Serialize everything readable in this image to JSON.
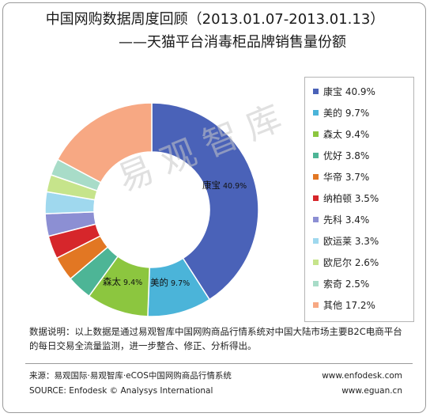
{
  "header": {
    "title": "中国网购数据周度回顾（2013.01.07-2013.01.13）",
    "subtitle": "——天猫平台消毒柜品牌销售量份额"
  },
  "watermark": "易观智库",
  "chart_data": {
    "type": "pie",
    "donut": true,
    "categories": [
      "康宝",
      "美的",
      "森太",
      "优好",
      "华帝",
      "纳柏顿",
      "先科",
      "欧运莱",
      "欧尼尔",
      "索奇",
      "其他"
    ],
    "values": [
      40.9,
      9.7,
      9.4,
      3.8,
      3.7,
      3.5,
      3.4,
      3.3,
      2.6,
      2.5,
      17.2
    ],
    "unit": "%",
    "colors": [
      "#4a62b8",
      "#4bb4d9",
      "#8cc63f",
      "#4db596",
      "#e27723",
      "#d6262b",
      "#8c8fd3",
      "#9fd8ee",
      "#c6e48b",
      "#a8dcc8",
      "#f7a883"
    ],
    "legend_labels": [
      "康宝 40.9%",
      "美的 9.7%",
      "森太 9.4%",
      "优好 3.8%",
      "华帝 3.7%",
      "纳柏顿 3.5%",
      "先科 3.4%",
      "欧运莱 3.3%",
      "欧尼尔 2.6%",
      "索奇 2.5%",
      "其他 17.2%"
    ],
    "legend_position": "right",
    "data_labels": [
      {
        "name": "康宝",
        "value": "40.9%"
      },
      {
        "name": "美的",
        "value": "9.7%"
      },
      {
        "name": "森太",
        "value": "9.4%"
      }
    ]
  },
  "note": "数据说明：以上数据是通过易观智库中国网购商品行情系统对中国大陆市场主要B2C电商平台的每日交易全流量监测，进一步整合、修正、分析得出。",
  "footer": {
    "source_cn": "来源：易观国际·易观智库·eCOS中国网购商品行情系统",
    "source_en": "SOURCE: Enfodesk © Analysys International",
    "url1": "www.enfodesk.com",
    "url2": "www.eguan.cn"
  }
}
